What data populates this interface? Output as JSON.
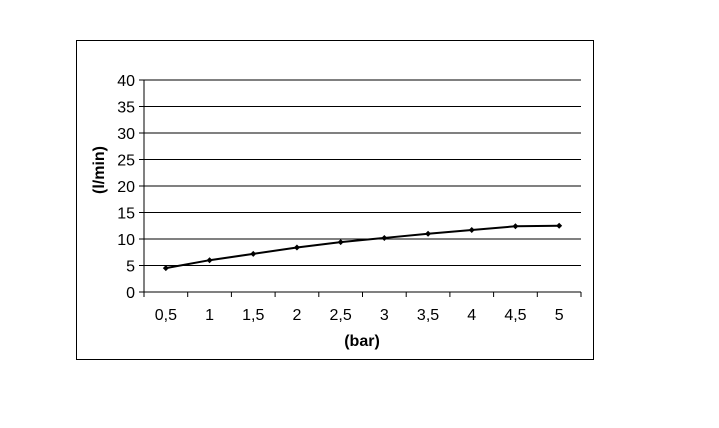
{
  "chart_data": {
    "type": "line",
    "title": "",
    "xlabel": "(bar)",
    "ylabel": "(l/min)",
    "categories": [
      "0,5",
      "1",
      "1,5",
      "2",
      "2,5",
      "3",
      "3,5",
      "4",
      "4,5",
      "5"
    ],
    "series": [
      {
        "values": [
          4.5,
          6.0,
          7.2,
          8.4,
          9.4,
          10.2,
          11.0,
          11.7,
          12.4,
          12.5
        ]
      }
    ],
    "ylim": [
      0,
      40
    ],
    "yticks": [
      0,
      5,
      10,
      15,
      20,
      25,
      30,
      35,
      40
    ],
    "grid": true,
    "legend": "none",
    "colors": {
      "line": "#000000",
      "grid": "#000000",
      "frame": "#000000"
    }
  }
}
